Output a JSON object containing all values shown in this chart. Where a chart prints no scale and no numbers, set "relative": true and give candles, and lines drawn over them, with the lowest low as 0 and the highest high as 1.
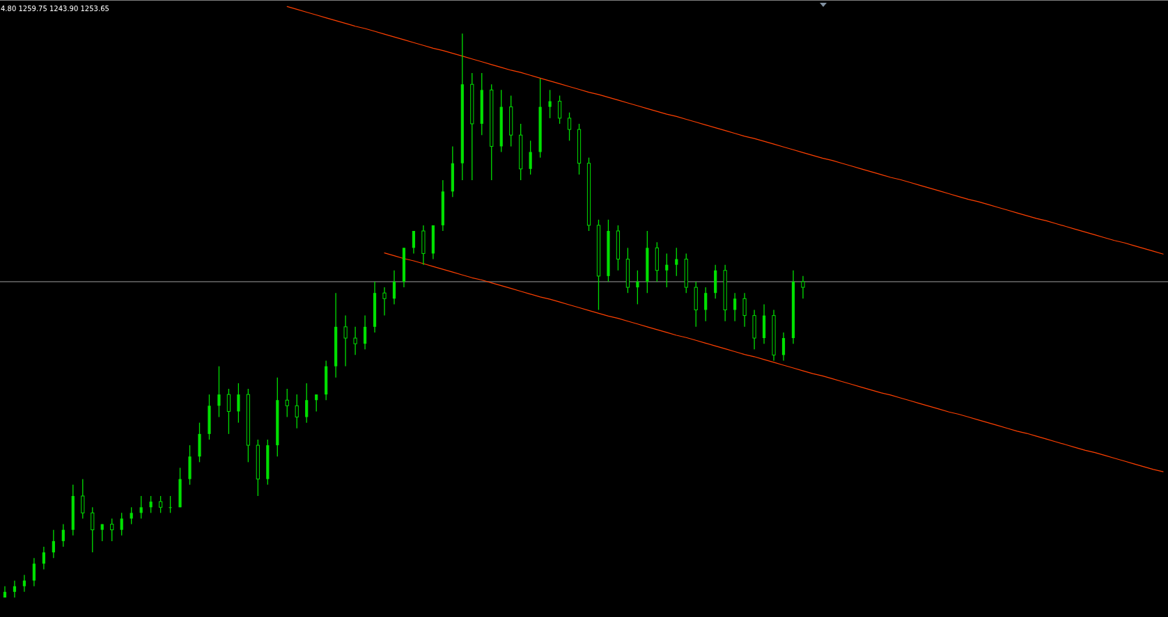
{
  "chart_data": {
    "type": "candlestick",
    "relative": true,
    "color": "#00e000",
    "annotations": [
      "4.80 1259.75 1243.90 1253.65"
    ],
    "categories": [
      null,
      null,
      null,
      null,
      null,
      null,
      null,
      null,
      null,
      null,
      null,
      null,
      null,
      null,
      null,
      null,
      null,
      null,
      null,
      null,
      null,
      null,
      null,
      null,
      null,
      null,
      null,
      null,
      null,
      null,
      null,
      null,
      null,
      null,
      null,
      null,
      null,
      null,
      null,
      null,
      null,
      null,
      null,
      null,
      null,
      null,
      null,
      null,
      null,
      null,
      null,
      null,
      null,
      null,
      null,
      null,
      null,
      null,
      null,
      null,
      null,
      null,
      null,
      null,
      null,
      null,
      null,
      null,
      null,
      null,
      null,
      null,
      null,
      null,
      null,
      null,
      null,
      null,
      null,
      null,
      null,
      null,
      null,
      null,
      null,
      null,
      null,
      null,
      null,
      null,
      null,
      null,
      null,
      null,
      null,
      null,
      null,
      null,
      null,
      null,
      null,
      null,
      null,
      null,
      null,
      null,
      null,
      null,
      null,
      null,
      null,
      null,
      null,
      null,
      null,
      null,
      null,
      null,
      null,
      null
    ],
    "ohlc": [
      [
        0.0,
        0.02,
        0,
        0.01
      ],
      [
        0.01,
        0.03,
        0.0,
        0.02
      ],
      [
        0.02,
        0.04,
        0.01,
        0.03
      ],
      [
        0.03,
        0.07,
        0.02,
        0.06
      ],
      [
        0.06,
        0.09,
        0.05,
        0.08
      ],
      [
        0.08,
        0.12,
        0.07,
        0.1
      ],
      [
        0.1,
        0.13,
        0.09,
        0.12
      ],
      [
        0.12,
        0.2,
        0.11,
        0.18
      ],
      [
        0.18,
        0.21,
        0.14,
        0.15
      ],
      [
        0.15,
        0.16,
        0.08,
        0.12
      ],
      [
        0.12,
        0.13,
        0.1,
        0.13
      ],
      [
        0.13,
        0.14,
        0.1,
        0.12
      ],
      [
        0.12,
        0.15,
        0.11,
        0.14
      ],
      [
        0.14,
        0.16,
        0.13,
        0.15
      ],
      [
        0.15,
        0.18,
        0.14,
        0.16
      ],
      [
        0.16,
        0.18,
        0.15,
        0.17
      ],
      [
        0.17,
        0.18,
        0.15,
        0.16
      ],
      [
        0.16,
        0.18,
        0.15,
        0.16
      ],
      [
        0.16,
        0.23,
        0.16,
        0.21
      ],
      [
        0.21,
        0.27,
        0.2,
        0.25
      ],
      [
        0.25,
        0.31,
        0.24,
        0.29
      ],
      [
        0.29,
        0.36,
        0.28,
        0.34
      ],
      [
        0.34,
        0.41,
        0.32,
        0.36
      ],
      [
        0.36,
        0.37,
        0.29,
        0.33
      ],
      [
        0.33,
        0.38,
        0.31,
        0.36
      ],
      [
        0.36,
        0.37,
        0.24,
        0.27
      ],
      [
        0.27,
        0.28,
        0.18,
        0.21
      ],
      [
        0.21,
        0.28,
        0.2,
        0.27
      ],
      [
        0.27,
        0.39,
        0.25,
        0.35
      ],
      [
        0.35,
        0.37,
        0.32,
        0.34
      ],
      [
        0.34,
        0.36,
        0.3,
        0.32
      ],
      [
        0.32,
        0.38,
        0.31,
        0.35
      ],
      [
        0.35,
        0.36,
        0.33,
        0.36
      ],
      [
        0.36,
        0.42,
        0.35,
        0.41
      ],
      [
        0.41,
        0.54,
        0.39,
        0.48
      ],
      [
        0.48,
        0.5,
        0.41,
        0.46
      ],
      [
        0.46,
        0.48,
        0.43,
        0.45
      ],
      [
        0.45,
        0.5,
        0.44,
        0.48
      ],
      [
        0.48,
        0.56,
        0.47,
        0.54
      ],
      [
        0.54,
        0.55,
        0.5,
        0.53
      ],
      [
        0.53,
        0.58,
        0.52,
        0.56
      ],
      [
        0.56,
        0.62,
        0.55,
        0.62
      ],
      [
        0.62,
        0.65,
        0.61,
        0.65
      ],
      [
        0.65,
        0.66,
        0.59,
        0.61
      ],
      [
        0.61,
        0.66,
        0.6,
        0.66
      ],
      [
        0.66,
        0.74,
        0.65,
        0.72
      ],
      [
        0.72,
        0.8,
        0.71,
        0.77
      ],
      [
        0.77,
        1,
        0.74,
        0.91
      ],
      [
        0.91,
        0.93,
        0.74,
        0.84
      ],
      [
        0.84,
        0.93,
        0.82,
        0.9
      ],
      [
        0.9,
        0.91,
        0.74,
        0.8
      ],
      [
        0.8,
        0.9,
        0.79,
        0.87
      ],
      [
        0.87,
        0.89,
        0.8,
        0.82
      ],
      [
        0.82,
        0.84,
        0.74,
        0.76
      ],
      [
        0.76,
        0.81,
        0.75,
        0.79
      ],
      [
        0.79,
        0.92,
        0.78,
        0.87
      ],
      [
        0.87,
        0.9,
        0.85,
        0.88
      ],
      [
        0.88,
        0.89,
        0.84,
        0.85
      ],
      [
        0.85,
        0.86,
        0.81,
        0.83
      ],
      [
        0.83,
        0.84,
        0.75,
        0.77
      ],
      [
        0.77,
        0.78,
        0.65,
        0.66
      ],
      [
        0.66,
        0.67,
        0.51,
        0.57
      ],
      [
        0.57,
        0.67,
        0.56,
        0.65
      ],
      [
        0.65,
        0.66,
        0.58,
        0.6
      ],
      [
        0.6,
        0.62,
        0.54,
        0.55
      ],
      [
        0.55,
        0.58,
        0.52,
        0.56
      ],
      [
        0.56,
        0.65,
        0.54,
        0.62
      ],
      [
        0.62,
        0.63,
        0.56,
        0.58
      ],
      [
        0.58,
        0.61,
        0.55,
        0.59
      ],
      [
        0.59,
        0.62,
        0.57,
        0.6
      ],
      [
        0.6,
        0.61,
        0.54,
        0.55
      ],
      [
        0.55,
        0.56,
        0.48,
        0.51
      ],
      [
        0.51,
        0.55,
        0.49,
        0.54
      ],
      [
        0.54,
        0.59,
        0.53,
        0.58
      ],
      [
        0.58,
        0.59,
        0.49,
        0.51
      ],
      [
        0.51,
        0.54,
        0.49,
        0.53
      ],
      [
        0.53,
        0.54,
        0.48,
        0.5
      ],
      [
        0.5,
        0.51,
        0.44,
        0.46
      ],
      [
        0.46,
        0.52,
        0.45,
        0.5
      ],
      [
        0.5,
        0.51,
        0.42,
        0.43
      ],
      [
        0.43,
        0.47,
        0.42,
        0.46
      ],
      [
        0.46,
        0.58,
        0.45,
        0.56
      ],
      [
        0.56,
        0.57,
        0.53,
        0.55
      ],
      null,
      null,
      null,
      null,
      null,
      null,
      null,
      null,
      null,
      null,
      null,
      null,
      null,
      null,
      null,
      null,
      null,
      null,
      null,
      null,
      null,
      null,
      null,
      null,
      null,
      null,
      null,
      null,
      null,
      null,
      null,
      null,
      null,
      null,
      null,
      null,
      null
    ],
    "ref_lines": [
      {
        "axis": "y",
        "value": 0.56,
        "color": "#a0a0a0"
      }
    ],
    "series": [
      {
        "type": "line",
        "color": "#ff4000",
        "values": [
          null,
          null,
          null,
          null,
          null,
          null,
          null,
          null,
          null,
          null,
          null,
          null,
          null,
          null,
          null,
          null,
          null,
          null,
          null,
          null,
          null,
          null,
          null,
          null,
          null,
          null,
          null,
          null,
          null,
          1.048,
          1.043,
          1.038,
          1.033,
          1.028,
          1.023,
          1.018,
          1.013,
          1.009,
          1.004,
          0.999,
          0.994,
          0.989,
          0.984,
          0.979,
          0.974,
          0.97,
          0.965,
          0.96,
          0.955,
          0.95,
          0.945,
          0.94,
          0.935,
          0.931,
          0.926,
          0.921,
          0.916,
          0.911,
          0.906,
          0.901,
          0.896,
          0.892,
          0.887,
          0.882,
          0.877,
          0.872,
          0.867,
          0.862,
          0.857,
          0.853,
          0.848,
          0.843,
          0.838,
          0.833,
          0.828,
          0.823,
          0.818,
          0.814,
          0.809,
          0.804,
          0.799,
          0.794,
          0.789,
          0.784,
          0.779,
          0.775,
          0.77,
          0.765,
          0.76,
          0.755,
          0.75,
          0.745,
          0.741,
          0.736,
          0.731,
          0.726,
          0.721,
          0.716,
          0.711,
          0.706,
          0.702,
          0.697,
          0.692,
          0.687,
          0.682,
          0.677,
          0.672,
          0.668,
          0.663,
          0.658,
          0.653,
          0.648,
          0.643,
          0.638,
          0.633,
          0.629,
          0.624,
          0.619,
          0.614,
          0.609
        ]
      },
      {
        "type": "line",
        "color": "#ff4000",
        "values": [
          null,
          null,
          null,
          null,
          null,
          null,
          null,
          null,
          null,
          null,
          null,
          null,
          null,
          null,
          null,
          null,
          null,
          null,
          null,
          null,
          null,
          null,
          null,
          null,
          null,
          null,
          null,
          null,
          null,
          null,
          null,
          null,
          null,
          null,
          null,
          null,
          null,
          null,
          null,
          0.611,
          0.606,
          0.601,
          0.597,
          0.592,
          0.587,
          0.582,
          0.577,
          0.572,
          0.567,
          0.563,
          0.558,
          0.553,
          0.548,
          0.543,
          0.538,
          0.533,
          0.529,
          0.524,
          0.519,
          0.514,
          0.509,
          0.504,
          0.499,
          0.495,
          0.49,
          0.485,
          0.48,
          0.475,
          0.47,
          0.465,
          0.461,
          0.456,
          0.451,
          0.446,
          0.441,
          0.436,
          0.431,
          0.427,
          0.422,
          0.417,
          0.412,
          0.407,
          0.402,
          0.397,
          0.393,
          0.388,
          0.383,
          0.378,
          0.373,
          0.368,
          0.363,
          0.359,
          0.354,
          0.349,
          0.344,
          0.339,
          0.334,
          0.329,
          0.325,
          0.32,
          0.315,
          0.31,
          0.305,
          0.3,
          0.295,
          0.291,
          0.286,
          0.281,
          0.276,
          0.271,
          0.266,
          0.261,
          0.257,
          0.252,
          0.247,
          0.242,
          0.237,
          0.232,
          0.227,
          0.223
        ]
      }
    ]
  }
}
